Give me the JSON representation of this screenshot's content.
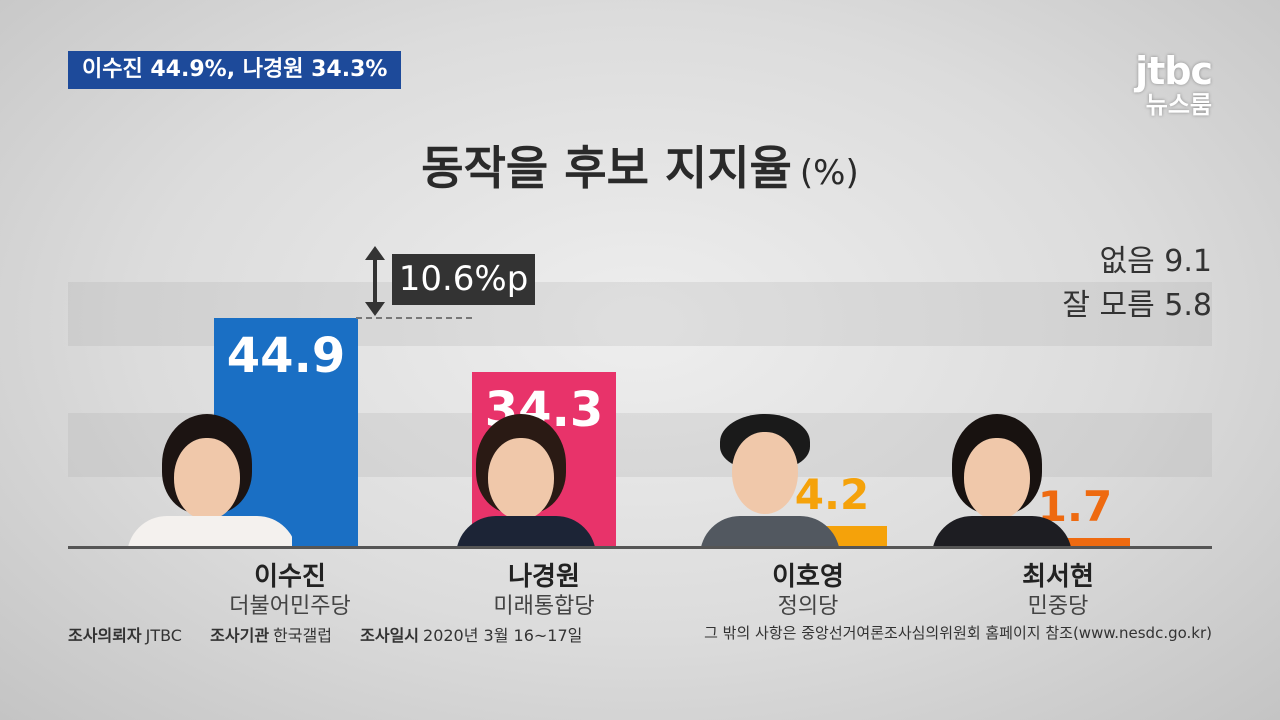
{
  "headline": "이수진 44.9%, 나경원 34.3%",
  "logo": {
    "brand": "jtbc",
    "sub": "뉴스룸"
  },
  "chart_data": {
    "type": "bar",
    "title": "동작을 후보 지지율",
    "unit": "(%)",
    "categories": [
      "이수진",
      "나경원",
      "이호영",
      "최서현"
    ],
    "parties": [
      "더불어민주당",
      "미래통합당",
      "정의당",
      "민중당"
    ],
    "values": [
      44.9,
      34.3,
      4.2,
      1.7
    ],
    "value_labels": [
      "44.9",
      "34.3",
      "4.2",
      "1.7"
    ],
    "colors": [
      "#1a6fc4",
      "#e8336a",
      "#f5a20a",
      "#ee6a10"
    ],
    "ylim": [
      0,
      60
    ],
    "grid": true,
    "legend": "none",
    "annotation": "10.6%p",
    "others": [
      {
        "label": "없음 9.1"
      },
      {
        "label": "잘 모름 5.8"
      }
    ]
  },
  "footer": {
    "client_label": "조사의뢰자",
    "client": "JTBC",
    "org_label": "조사기관",
    "org": "한국갤럽",
    "date_label": "조사일시",
    "date": "2020년 3월 16~17일",
    "note": "그 밖의 사항은 중앙선거여론조사심의위원회 홈페이지 참조(www.nesdc.go.kr)"
  }
}
